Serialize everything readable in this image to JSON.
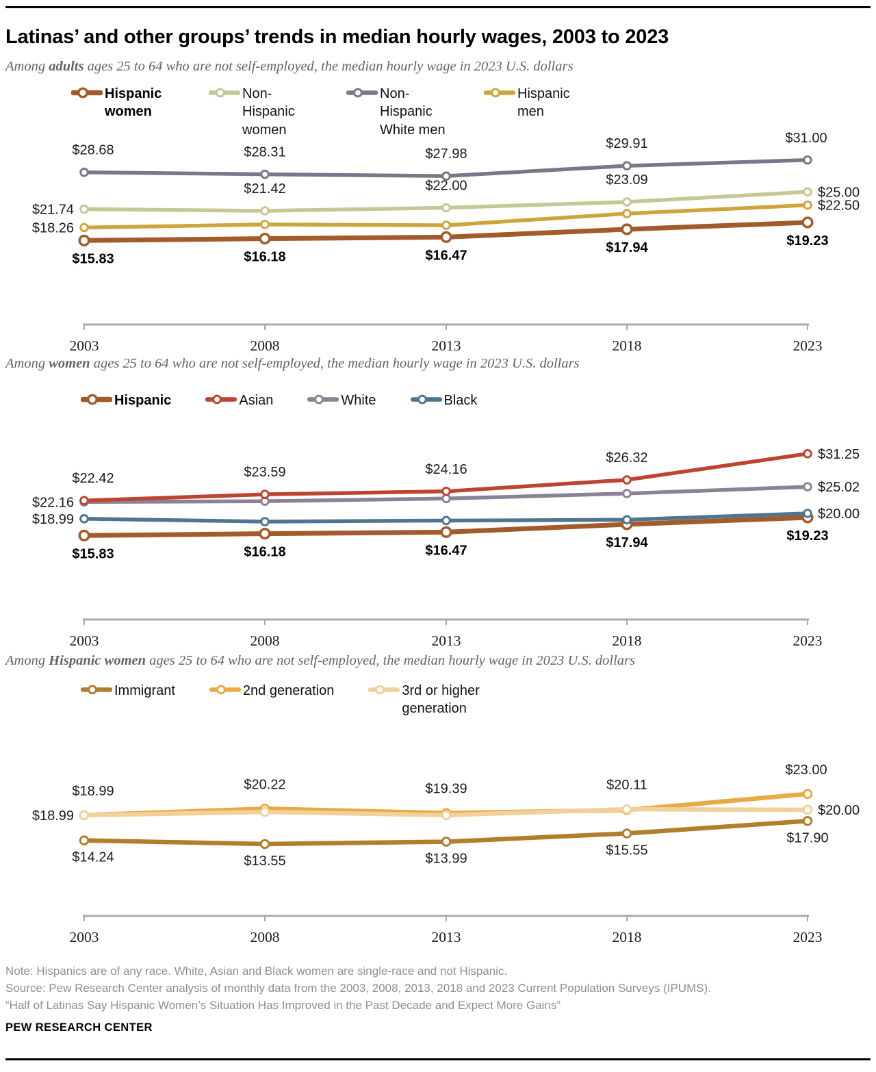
{
  "page": {
    "title": "Latinas’ and other groups’ trends in median hourly wages, 2003 to 2023",
    "note_lines": [
      "Note: Hispanics are of any race. White, Asian and Black women are single-race and not Hispanic.",
      "Source: Pew Research Center analysis of monthly data from the 2003, 2008, 2013, 2018 and 2023 Current Population Surveys (IPUMS).",
      "“Half of Latinas Say Hispanic Women’s Situation Has Improved in the Past Decade and Expect More Gains”"
    ],
    "brand": "PEW RESEARCH CENTER"
  },
  "chart_data": [
    {
      "type": "line",
      "subtitle": {
        "prefix": "Among ",
        "bold": "adults",
        "suffix": " ages 25 to 64 who are not self-employed, the median hourly wage in 2023 U.S. dollars"
      },
      "x": [
        "2003",
        "2008",
        "2013",
        "2018",
        "2023"
      ],
      "ylim": [
        0,
        35
      ],
      "grid": false,
      "marker_style": "open-circle",
      "legend_position": "top",
      "series": [
        {
          "name": "Hispanic women",
          "color": "#A25B2B",
          "emphasis": true,
          "z": 4,
          "values": [
            15.83,
            16.18,
            16.47,
            17.94,
            19.23
          ]
        },
        {
          "name": "Non-Hispanic women",
          "color": "#C6C794",
          "emphasis": false,
          "z": 2,
          "values": [
            21.74,
            21.42,
            22.0,
            23.09,
            25.0
          ]
        },
        {
          "name": "Non-Hispanic White men",
          "color": "#7D7588",
          "emphasis": false,
          "z": 1,
          "values": [
            28.68,
            28.31,
            27.98,
            29.91,
            31.0
          ]
        },
        {
          "name": "Hispanic men",
          "color": "#CEA53C",
          "emphasis": false,
          "z": 3,
          "values": [
            18.26,
            18.85,
            18.7,
            20.9,
            22.5
          ]
        }
      ],
      "point_labels": [
        {
          "series": 2,
          "i": 0,
          "text": "$28.68",
          "pos": "above",
          "bold": false
        },
        {
          "series": 2,
          "i": 1,
          "text": "$28.31",
          "pos": "above",
          "bold": false
        },
        {
          "series": 2,
          "i": 2,
          "text": "$27.98",
          "pos": "above",
          "bold": false
        },
        {
          "series": 2,
          "i": 3,
          "text": "$29.91",
          "pos": "above",
          "bold": false
        },
        {
          "series": 2,
          "i": 4,
          "text": "$31.00",
          "pos": "above",
          "bold": false
        },
        {
          "series": 1,
          "i": 0,
          "text": "$21.74",
          "pos": "left",
          "bold": false
        },
        {
          "series": 1,
          "i": 1,
          "text": "$21.42",
          "pos": "above",
          "bold": false
        },
        {
          "series": 1,
          "i": 2,
          "text": "$22.00",
          "pos": "above",
          "bold": false
        },
        {
          "series": 1,
          "i": 3,
          "text": "$23.09",
          "pos": "above",
          "bold": false
        },
        {
          "series": 1,
          "i": 4,
          "text": "$25.00",
          "pos": "right",
          "bold": false
        },
        {
          "series": 3,
          "i": 0,
          "text": "$18.26",
          "pos": "left",
          "bold": false
        },
        {
          "series": 3,
          "i": 4,
          "text": "$22.50",
          "pos": "right",
          "bold": false
        },
        {
          "series": 0,
          "i": 0,
          "text": "$15.83",
          "pos": "below",
          "bold": true
        },
        {
          "series": 0,
          "i": 1,
          "text": "$16.18",
          "pos": "below",
          "bold": true
        },
        {
          "series": 0,
          "i": 2,
          "text": "$16.47",
          "pos": "below",
          "bold": true
        },
        {
          "series": 0,
          "i": 3,
          "text": "$17.94",
          "pos": "below",
          "bold": true
        },
        {
          "series": 0,
          "i": 4,
          "text": "$19.23",
          "pos": "below",
          "bold": true
        }
      ]
    },
    {
      "type": "line",
      "subtitle": {
        "prefix": "Among ",
        "bold": "women",
        "suffix": " ages 25 to 64 who are not self-employed, the median hourly wage in 2023 U.S. dollars"
      },
      "x": [
        "2003",
        "2008",
        "2013",
        "2018",
        "2023"
      ],
      "ylim": [
        0,
        35
      ],
      "grid": false,
      "marker_style": "open-circle",
      "legend_position": "top",
      "series": [
        {
          "name": "Hispanic",
          "color": "#A25B2B",
          "emphasis": true,
          "z": 3,
          "values": [
            15.83,
            16.18,
            16.47,
            17.94,
            19.23
          ]
        },
        {
          "name": "Asian",
          "color": "#BE4431",
          "emphasis": false,
          "z": 2,
          "values": [
            22.42,
            23.59,
            24.16,
            26.32,
            31.25
          ]
        },
        {
          "name": "White",
          "color": "#8B8295",
          "emphasis": false,
          "z": 1,
          "values": [
            22.16,
            22.3,
            22.8,
            23.75,
            25.02
          ]
        },
        {
          "name": "Black",
          "color": "#4F7590",
          "emphasis": false,
          "z": 4,
          "values": [
            18.99,
            18.45,
            18.65,
            18.8,
            20.0
          ]
        }
      ],
      "point_labels": [
        {
          "series": 1,
          "i": 0,
          "text": "$22.42",
          "pos": "above",
          "bold": false
        },
        {
          "series": 1,
          "i": 1,
          "text": "$23.59",
          "pos": "above",
          "bold": false
        },
        {
          "series": 1,
          "i": 2,
          "text": "$24.16",
          "pos": "above",
          "bold": false
        },
        {
          "series": 1,
          "i": 3,
          "text": "$26.32",
          "pos": "above",
          "bold": false
        },
        {
          "series": 1,
          "i": 4,
          "text": "$31.25",
          "pos": "right",
          "bold": false
        },
        {
          "series": 2,
          "i": 0,
          "text": "$22.16",
          "pos": "left",
          "bold": false
        },
        {
          "series": 2,
          "i": 4,
          "text": "$25.02",
          "pos": "right",
          "bold": false
        },
        {
          "series": 3,
          "i": 0,
          "text": "$18.99",
          "pos": "left",
          "bold": false
        },
        {
          "series": 3,
          "i": 4,
          "text": "$20.00",
          "pos": "right",
          "bold": false
        },
        {
          "series": 0,
          "i": 0,
          "text": "$15.83",
          "pos": "below",
          "bold": true
        },
        {
          "series": 0,
          "i": 1,
          "text": "$16.18",
          "pos": "below",
          "bold": true
        },
        {
          "series": 0,
          "i": 2,
          "text": "$16.47",
          "pos": "below",
          "bold": true
        },
        {
          "series": 0,
          "i": 3,
          "text": "$17.94",
          "pos": "below",
          "bold": true
        },
        {
          "series": 0,
          "i": 4,
          "text": "$19.23",
          "pos": "below",
          "bold": true
        }
      ]
    },
    {
      "type": "line",
      "subtitle": {
        "prefix": "Among ",
        "bold": "Hispanic women",
        "suffix": " ages 25 to 64 who are not self-employed, the median hourly wage in 2023 U.S. dollars"
      },
      "x": [
        "2003",
        "2008",
        "2013",
        "2018",
        "2023"
      ],
      "ylim": [
        0,
        35
      ],
      "grid": false,
      "marker_style": "open-circle",
      "legend_position": "top",
      "series": [
        {
          "name": "Immigrant",
          "color": "#B17E2C",
          "emphasis": false,
          "z": 1,
          "values": [
            14.24,
            13.55,
            13.99,
            15.55,
            17.9
          ]
        },
        {
          "name": "2nd generation",
          "color": "#E8AA43",
          "emphasis": false,
          "z": 2,
          "values": [
            18.99,
            20.22,
            19.39,
            19.95,
            23.0
          ]
        },
        {
          "name": "3rd or higher generation",
          "color": "#F1D19B",
          "emphasis": false,
          "z": 3,
          "values": [
            18.99,
            19.6,
            19.0,
            20.11,
            20.0
          ]
        }
      ],
      "point_labels": [
        {
          "series": 1,
          "i": 0,
          "text": "$18.99",
          "pos": "above",
          "bold": false
        },
        {
          "series": 1,
          "i": 1,
          "text": "$20.22",
          "pos": "above",
          "bold": false
        },
        {
          "series": 1,
          "i": 2,
          "text": "$19.39",
          "pos": "above",
          "bold": false
        },
        {
          "series": 2,
          "i": 3,
          "text": "$20.11",
          "pos": "above",
          "bold": false
        },
        {
          "series": 1,
          "i": 4,
          "text": "$23.00",
          "pos": "above",
          "bold": false
        },
        {
          "series": 2,
          "i": 0,
          "text": "$18.99",
          "pos": "left",
          "bold": false
        },
        {
          "series": 2,
          "i": 4,
          "text": "$20.00",
          "pos": "right",
          "bold": false
        },
        {
          "series": 0,
          "i": 0,
          "text": "$14.24",
          "pos": "below",
          "bold": false
        },
        {
          "series": 0,
          "i": 1,
          "text": "$13.55",
          "pos": "below",
          "bold": false
        },
        {
          "series": 0,
          "i": 2,
          "text": "$13.99",
          "pos": "below",
          "bold": false
        },
        {
          "series": 0,
          "i": 3,
          "text": "$15.55",
          "pos": "below",
          "bold": false
        },
        {
          "series": 0,
          "i": 4,
          "text": "$17.90",
          "pos": "below",
          "bold": false
        }
      ]
    }
  ]
}
